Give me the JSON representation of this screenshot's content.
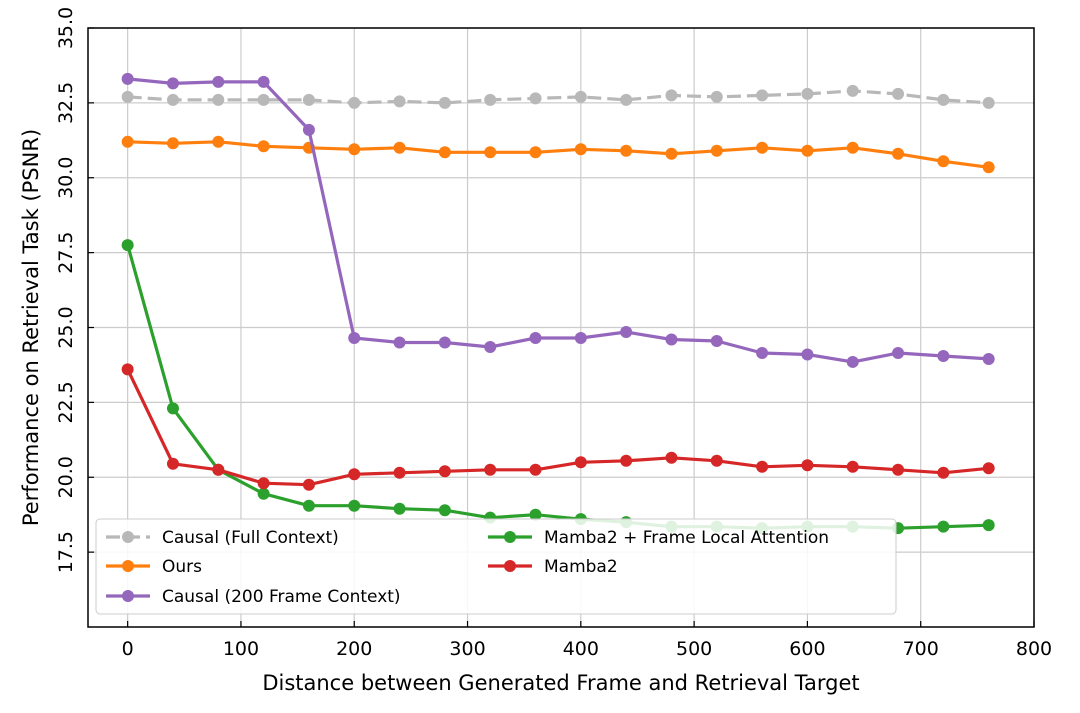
{
  "chart_data": {
    "type": "line",
    "title": "",
    "xlabel": "Distance between Generated Frame and Retrieval Target",
    "ylabel": "Performance on Retrieval Task (PSNR)",
    "xlim": [
      -35,
      800
    ],
    "ylim": [
      15,
      35
    ],
    "xticks": [
      0,
      100,
      200,
      300,
      400,
      500,
      600,
      700,
      800
    ],
    "yticks": [
      17.5,
      20.0,
      22.5,
      25.0,
      27.5,
      30.0,
      32.5,
      35.0
    ],
    "grid": true,
    "legend_position": "lower-left",
    "x": [
      0,
      40,
      80,
      120,
      160,
      200,
      240,
      280,
      320,
      360,
      400,
      440,
      480,
      520,
      560,
      600,
      640,
      680,
      720,
      760
    ],
    "series": [
      {
        "name": "Causal (Full Context)",
        "color": "#b8b8b8",
        "style": "dashed",
        "values": [
          32.7,
          32.6,
          32.6,
          32.6,
          32.6,
          32.5,
          32.55,
          32.5,
          32.6,
          32.65,
          32.7,
          32.6,
          32.75,
          32.7,
          32.75,
          32.8,
          32.9,
          32.8,
          32.6,
          32.5
        ]
      },
      {
        "name": "Ours",
        "color": "#ff7f0e",
        "style": "solid",
        "values": [
          31.2,
          31.15,
          31.2,
          31.05,
          31.0,
          30.95,
          31.0,
          30.85,
          30.85,
          30.85,
          30.95,
          30.9,
          30.8,
          30.9,
          31.0,
          30.9,
          31.0,
          30.8,
          30.55,
          30.35
        ]
      },
      {
        "name": "Causal (200 Frame Context)",
        "color": "#9467bd",
        "style": "solid",
        "values": [
          33.3,
          33.15,
          33.2,
          33.2,
          31.6,
          24.65,
          24.5,
          24.5,
          24.35,
          24.65,
          24.65,
          24.85,
          24.6,
          24.55,
          24.15,
          24.1,
          23.85,
          24.15,
          24.05,
          23.95
        ]
      },
      {
        "name": "Mamba2 + Frame Local Attention",
        "color": "#2ca02c",
        "style": "solid",
        "values": [
          27.75,
          22.3,
          20.25,
          19.45,
          19.05,
          19.05,
          18.95,
          18.9,
          18.65,
          18.75,
          18.6,
          18.5,
          18.35,
          18.35,
          18.3,
          18.35,
          18.35,
          18.3,
          18.35,
          18.4
        ]
      },
      {
        "name": "Mamba2",
        "color": "#d62728",
        "style": "solid",
        "values": [
          23.6,
          20.45,
          20.25,
          19.8,
          19.75,
          20.1,
          20.15,
          20.2,
          20.25,
          20.25,
          20.5,
          20.55,
          20.65,
          20.55,
          20.35,
          20.4,
          20.35,
          20.25,
          20.15,
          20.3
        ]
      }
    ]
  }
}
